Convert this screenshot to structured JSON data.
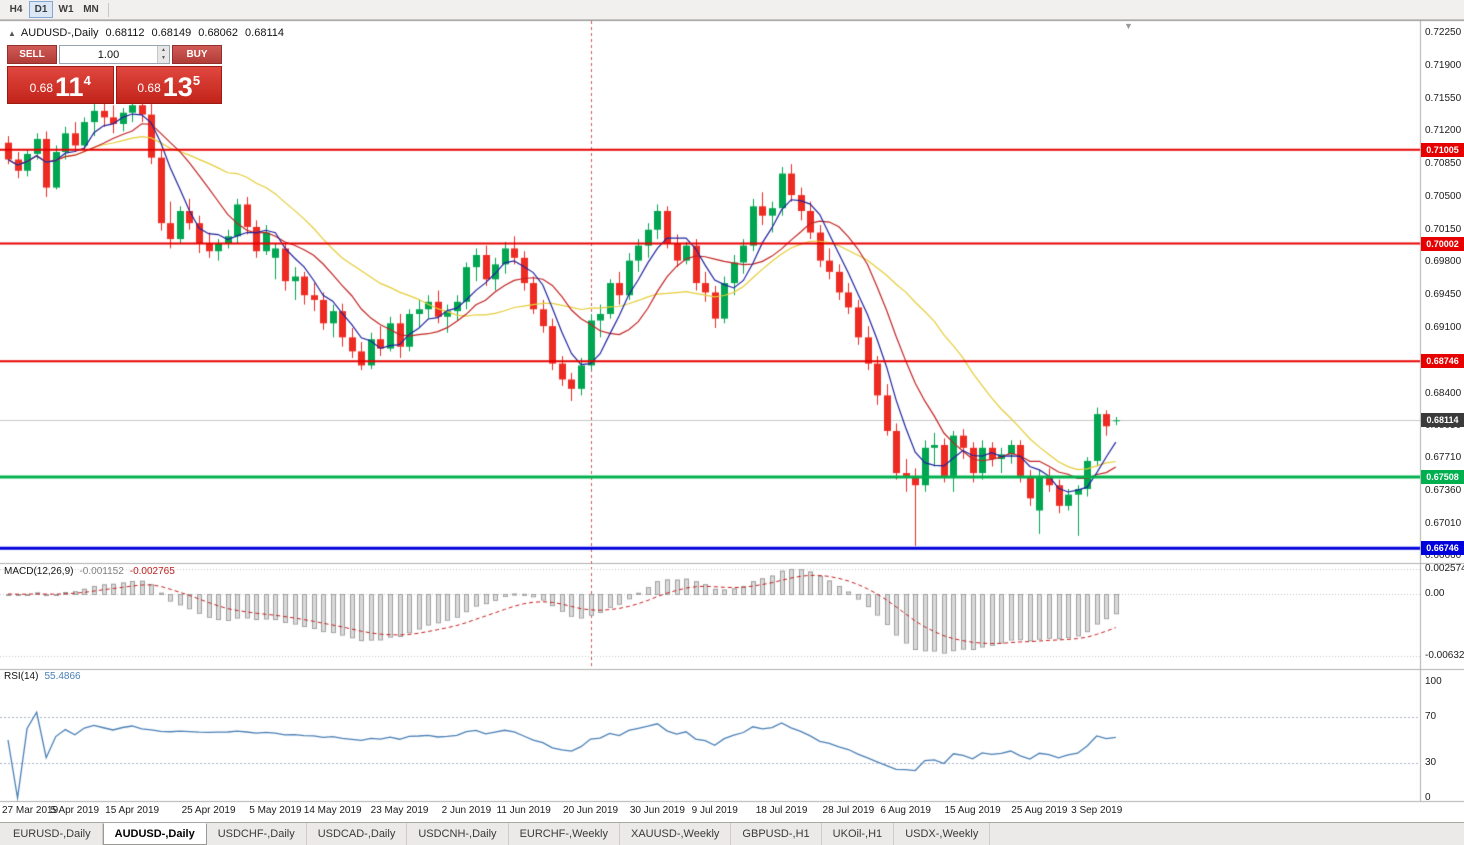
{
  "toolbar": {
    "timeframes": [
      {
        "label": "H4",
        "active": false
      },
      {
        "label": "D1",
        "active": true
      },
      {
        "label": "W1",
        "active": false
      },
      {
        "label": "MN",
        "active": false
      }
    ]
  },
  "chart_header": {
    "symbol": "AUDUSD-,Daily",
    "open": "0.68112",
    "high": "0.68149",
    "low": "0.68062",
    "close": "0.68114"
  },
  "trade_panel": {
    "sell_label": "SELL",
    "buy_label": "BUY",
    "volume": "1.00",
    "bid": {
      "prefix": "0.68",
      "main": "11",
      "sup": "4"
    },
    "ask": {
      "prefix": "0.68",
      "main": "13",
      "sup": "5"
    }
  },
  "price_scale": {
    "ticks": [
      "0.72250",
      "0.71900",
      "0.71550",
      "0.71200",
      "0.70850",
      "0.70500",
      "0.70150",
      "0.69800",
      "0.69450",
      "0.69100",
      "0.68750",
      "0.68400",
      "0.68050",
      "0.67710",
      "0.67360",
      "0.67010",
      "0.66660"
    ]
  },
  "indicators": {
    "macd": {
      "name": "MACD(12,26,9)",
      "main_value": "-0.001152",
      "signal_value": "-0.002765",
      "fast": 12,
      "slow": 26,
      "signal": 9,
      "axis": [
        {
          "label": "0.002574",
          "value": 0.002574
        },
        {
          "label": "0.00",
          "value": 0
        },
        {
          "label": "-0.006326",
          "value": -0.006326
        }
      ]
    },
    "rsi": {
      "name": "RSI(14)",
      "value": "55.4866",
      "period": 14,
      "levels": [
        70,
        30
      ],
      "axis": [
        {
          "label": "100",
          "value": 100
        },
        {
          "label": "70",
          "value": 70
        },
        {
          "label": "30",
          "value": 30
        },
        {
          "label": "0",
          "value": 0
        }
      ]
    }
  },
  "chart_data": {
    "type": "candlestick",
    "symbol": "AUDUSD-",
    "timeframe": "Daily",
    "price_range": [
      0.666,
      0.7238
    ],
    "bid": {
      "price": 0.68114,
      "label": "0.68114"
    },
    "hlines": [
      {
        "price": 0.71005,
        "label": "0.71005",
        "color": "#e60000",
        "width": 2
      },
      {
        "price": 0.70002,
        "label": "0.70002",
        "color": "#e60000",
        "width": 2
      },
      {
        "price": 0.68746,
        "label": "0.68746",
        "color": "#e60000",
        "width": 2
      },
      {
        "price": 0.67508,
        "label": "0.67508",
        "color": "#00b04e",
        "width": 3
      },
      {
        "price": 0.66746,
        "label": "0.66746",
        "color": "#0000dd",
        "width": 3
      }
    ],
    "moving_averages": [
      {
        "period": 20,
        "color": "#e5cd3a"
      },
      {
        "period": 10,
        "color": "#c22424"
      },
      {
        "period": 5,
        "color": "#20249e"
      }
    ],
    "vline": {
      "index": 61,
      "color": "#d05858"
    },
    "date_labels": [
      {
        "index": 0,
        "label": "27 Mar 2019"
      },
      {
        "index": 7,
        "label": "5 Apr 2019"
      },
      {
        "index": 13,
        "label": "15 Apr 2019"
      },
      {
        "index": 21,
        "label": "25 Apr 2019"
      },
      {
        "index": 28,
        "label": "5 May 2019"
      },
      {
        "index": 34,
        "label": "14 May 2019"
      },
      {
        "index": 41,
        "label": "23 May 2019"
      },
      {
        "index": 48,
        "label": "2 Jun 2019"
      },
      {
        "index": 54,
        "label": "11 Jun 2019"
      },
      {
        "index": 61,
        "label": "20 Jun 2019"
      },
      {
        "index": 68,
        "label": "30 Jun 2019"
      },
      {
        "index": 74,
        "label": "9 Jul 2019"
      },
      {
        "index": 81,
        "label": "18 Jul 2019"
      },
      {
        "index": 88,
        "label": "28 Jul 2019"
      },
      {
        "index": 94,
        "label": "6 Aug 2019"
      },
      {
        "index": 101,
        "label": "15 Aug 2019"
      },
      {
        "index": 108,
        "label": "25 Aug 2019"
      },
      {
        "index": 114,
        "label": "3 Sep 2019"
      }
    ],
    "candles": [
      [
        0.7108,
        0.7115,
        0.7085,
        0.709
      ],
      [
        0.709,
        0.7098,
        0.707,
        0.7078
      ],
      [
        0.7078,
        0.71,
        0.7072,
        0.7096
      ],
      [
        0.7096,
        0.7118,
        0.709,
        0.7112
      ],
      [
        0.7112,
        0.712,
        0.705,
        0.706
      ],
      [
        0.706,
        0.7105,
        0.7058,
        0.7098
      ],
      [
        0.7098,
        0.7125,
        0.709,
        0.7118
      ],
      [
        0.7118,
        0.713,
        0.7098,
        0.7105
      ],
      [
        0.7105,
        0.7135,
        0.71,
        0.713
      ],
      [
        0.713,
        0.715,
        0.7115,
        0.7142
      ],
      [
        0.7142,
        0.7155,
        0.7125,
        0.7135
      ],
      [
        0.7135,
        0.7148,
        0.7118,
        0.7128
      ],
      [
        0.7128,
        0.7145,
        0.712,
        0.714
      ],
      [
        0.714,
        0.7155,
        0.713,
        0.7148
      ],
      [
        0.7148,
        0.7158,
        0.713,
        0.7138
      ],
      [
        0.7138,
        0.715,
        0.7085,
        0.7092
      ],
      [
        0.7092,
        0.71,
        0.7014,
        0.7022
      ],
      [
        0.7022,
        0.7045,
        0.6995,
        0.7005
      ],
      [
        0.7005,
        0.704,
        0.7,
        0.7035
      ],
      [
        0.7035,
        0.7048,
        0.7015,
        0.7022
      ],
      [
        0.7022,
        0.703,
        0.699,
        0.7
      ],
      [
        0.7,
        0.7012,
        0.6985,
        0.6992
      ],
      [
        0.6992,
        0.7005,
        0.6982,
        0.7
      ],
      [
        0.7,
        0.7015,
        0.6995,
        0.7008
      ],
      [
        0.7008,
        0.7048,
        0.7,
        0.7042
      ],
      [
        0.7042,
        0.705,
        0.701,
        0.7018
      ],
      [
        0.7018,
        0.7025,
        0.6985,
        0.6992
      ],
      [
        0.6992,
        0.702,
        0.6988,
        0.7012
      ],
      [
        0.6985,
        0.7,
        0.6962,
        0.6995
      ],
      [
        0.6995,
        0.7,
        0.695,
        0.696
      ],
      [
        0.696,
        0.6975,
        0.694,
        0.6965
      ],
      [
        0.6965,
        0.697,
        0.6935,
        0.6945
      ],
      [
        0.6945,
        0.6958,
        0.6928,
        0.694
      ],
      [
        0.694,
        0.6948,
        0.6908,
        0.6915
      ],
      [
        0.6915,
        0.6935,
        0.69,
        0.6928
      ],
      [
        0.6928,
        0.6936,
        0.689,
        0.69
      ],
      [
        0.69,
        0.691,
        0.6878,
        0.6885
      ],
      [
        0.6885,
        0.6895,
        0.6865,
        0.687
      ],
      [
        0.687,
        0.6905,
        0.6866,
        0.6898
      ],
      [
        0.6898,
        0.6912,
        0.688,
        0.6888
      ],
      [
        0.6888,
        0.6922,
        0.6885,
        0.6915
      ],
      [
        0.6915,
        0.6925,
        0.6878,
        0.689
      ],
      [
        0.689,
        0.693,
        0.6885,
        0.6925
      ],
      [
        0.6925,
        0.694,
        0.691,
        0.693
      ],
      [
        0.693,
        0.6945,
        0.692,
        0.6938
      ],
      [
        0.6938,
        0.695,
        0.6915,
        0.6922
      ],
      [
        0.6922,
        0.6935,
        0.6905,
        0.6928
      ],
      [
        0.6928,
        0.6945,
        0.6918,
        0.6938
      ],
      [
        0.6938,
        0.698,
        0.693,
        0.6975
      ],
      [
        0.6975,
        0.6995,
        0.696,
        0.6988
      ],
      [
        0.6988,
        0.6998,
        0.6955,
        0.6962
      ],
      [
        0.6962,
        0.6985,
        0.695,
        0.6978
      ],
      [
        0.6978,
        0.7002,
        0.6968,
        0.6995
      ],
      [
        0.6995,
        0.7008,
        0.6978,
        0.6985
      ],
      [
        0.6985,
        0.6992,
        0.695,
        0.6958
      ],
      [
        0.6958,
        0.6965,
        0.6925,
        0.693
      ],
      [
        0.693,
        0.694,
        0.6905,
        0.6912
      ],
      [
        0.6912,
        0.692,
        0.6865,
        0.6872
      ],
      [
        0.6872,
        0.688,
        0.6848,
        0.6855
      ],
      [
        0.6855,
        0.6862,
        0.6832,
        0.6845
      ],
      [
        0.6845,
        0.6878,
        0.6838,
        0.687
      ],
      [
        0.687,
        0.6925,
        0.6865,
        0.6918
      ],
      [
        0.6918,
        0.6935,
        0.69,
        0.6925
      ],
      [
        0.6925,
        0.6962,
        0.692,
        0.6958
      ],
      [
        0.6958,
        0.697,
        0.6935,
        0.6945
      ],
      [
        0.6945,
        0.699,
        0.694,
        0.6982
      ],
      [
        0.6982,
        0.7005,
        0.697,
        0.6998
      ],
      [
        0.6998,
        0.7022,
        0.6985,
        0.7015
      ],
      [
        0.7015,
        0.7042,
        0.7005,
        0.7035
      ],
      [
        0.7035,
        0.704,
        0.6995,
        0.7
      ],
      [
        0.7,
        0.701,
        0.6975,
        0.6982
      ],
      [
        0.6982,
        0.7002,
        0.6978,
        0.6998
      ],
      [
        0.6998,
        0.7005,
        0.695,
        0.6958
      ],
      [
        0.6958,
        0.697,
        0.6938,
        0.6948
      ],
      [
        0.6948,
        0.6955,
        0.691,
        0.692
      ],
      [
        0.692,
        0.6965,
        0.6915,
        0.6958
      ],
      [
        0.6958,
        0.6988,
        0.6945,
        0.698
      ],
      [
        0.698,
        0.7005,
        0.6968,
        0.6998
      ],
      [
        0.6998,
        0.7048,
        0.6992,
        0.704
      ],
      [
        0.704,
        0.7055,
        0.702,
        0.703
      ],
      [
        0.703,
        0.7045,
        0.7012,
        0.7038
      ],
      [
        0.7038,
        0.7082,
        0.703,
        0.7075
      ],
      [
        0.7075,
        0.7085,
        0.7045,
        0.7052
      ],
      [
        0.7052,
        0.706,
        0.7025,
        0.7035
      ],
      [
        0.7035,
        0.7045,
        0.7005,
        0.7012
      ],
      [
        0.7012,
        0.702,
        0.6975,
        0.6982
      ],
      [
        0.6982,
        0.6995,
        0.6962,
        0.697
      ],
      [
        0.697,
        0.6978,
        0.694,
        0.6948
      ],
      [
        0.6948,
        0.6958,
        0.6925,
        0.6932
      ],
      [
        0.6932,
        0.694,
        0.6892,
        0.69
      ],
      [
        0.69,
        0.6912,
        0.6865,
        0.6872
      ],
      [
        0.6872,
        0.688,
        0.6828,
        0.6838
      ],
      [
        0.6838,
        0.685,
        0.6795,
        0.68
      ],
      [
        0.68,
        0.6808,
        0.6748,
        0.6755
      ],
      [
        0.6755,
        0.677,
        0.6735,
        0.6752
      ],
      [
        0.6752,
        0.676,
        0.6677,
        0.6742
      ],
      [
        0.6742,
        0.679,
        0.6735,
        0.6782
      ],
      [
        0.6782,
        0.6798,
        0.6762,
        0.6785
      ],
      [
        0.6785,
        0.6792,
        0.6745,
        0.6752
      ],
      [
        0.6752,
        0.68,
        0.6735,
        0.6795
      ],
      [
        0.6795,
        0.6802,
        0.677,
        0.6782
      ],
      [
        0.6782,
        0.6788,
        0.6745,
        0.6755
      ],
      [
        0.6755,
        0.679,
        0.6748,
        0.6782
      ],
      [
        0.6782,
        0.6788,
        0.6762,
        0.677
      ],
      [
        0.677,
        0.6782,
        0.6755,
        0.6775
      ],
      [
        0.6775,
        0.679,
        0.6765,
        0.6785
      ],
      [
        0.6785,
        0.679,
        0.6745,
        0.6752
      ],
      [
        0.6752,
        0.6758,
        0.672,
        0.6728
      ],
      [
        0.6715,
        0.6758,
        0.669,
        0.6752
      ],
      [
        0.6752,
        0.676,
        0.6735,
        0.6742
      ],
      [
        0.6742,
        0.6748,
        0.6712,
        0.672
      ],
      [
        0.672,
        0.6738,
        0.6715,
        0.6732
      ],
      [
        0.6732,
        0.6742,
        0.6688,
        0.6738
      ],
      [
        0.6738,
        0.6772,
        0.673,
        0.6768
      ],
      [
        0.6768,
        0.6825,
        0.6762,
        0.6818
      ],
      [
        0.6818,
        0.6822,
        0.6795,
        0.6805
      ],
      [
        0.68112,
        0.68149,
        0.68062,
        0.68114
      ]
    ]
  },
  "bottom_tabs": [
    {
      "label": "EURUSD-,Daily",
      "active": false
    },
    {
      "label": "AUDUSD-,Daily",
      "active": true
    },
    {
      "label": "USDCHF-,Daily",
      "active": false
    },
    {
      "label": "USDCAD-,Daily",
      "active": false
    },
    {
      "label": "USDCNH-,Daily",
      "active": false
    },
    {
      "label": "EURCHF-,Weekly",
      "active": false
    },
    {
      "label": "XAUUSD-,Weekly",
      "active": false
    },
    {
      "label": "GBPUSD-,H1",
      "active": false
    },
    {
      "label": "UKOil-,H1",
      "active": false
    },
    {
      "label": "USDX-,Weekly",
      "active": false
    }
  ],
  "colors": {
    "bull": "#00a651",
    "bear": "#ee2b22",
    "bid_line": "#c8c8c8",
    "bid_tag": "#3a3a3a",
    "macd_bar_fill": "#dadada",
    "macd_bar_stroke": "#a0a0a0",
    "macd_signal": "#c41f1f",
    "rsi_line": "#4a7fb5",
    "rsi_level": "#a8b2c8"
  }
}
